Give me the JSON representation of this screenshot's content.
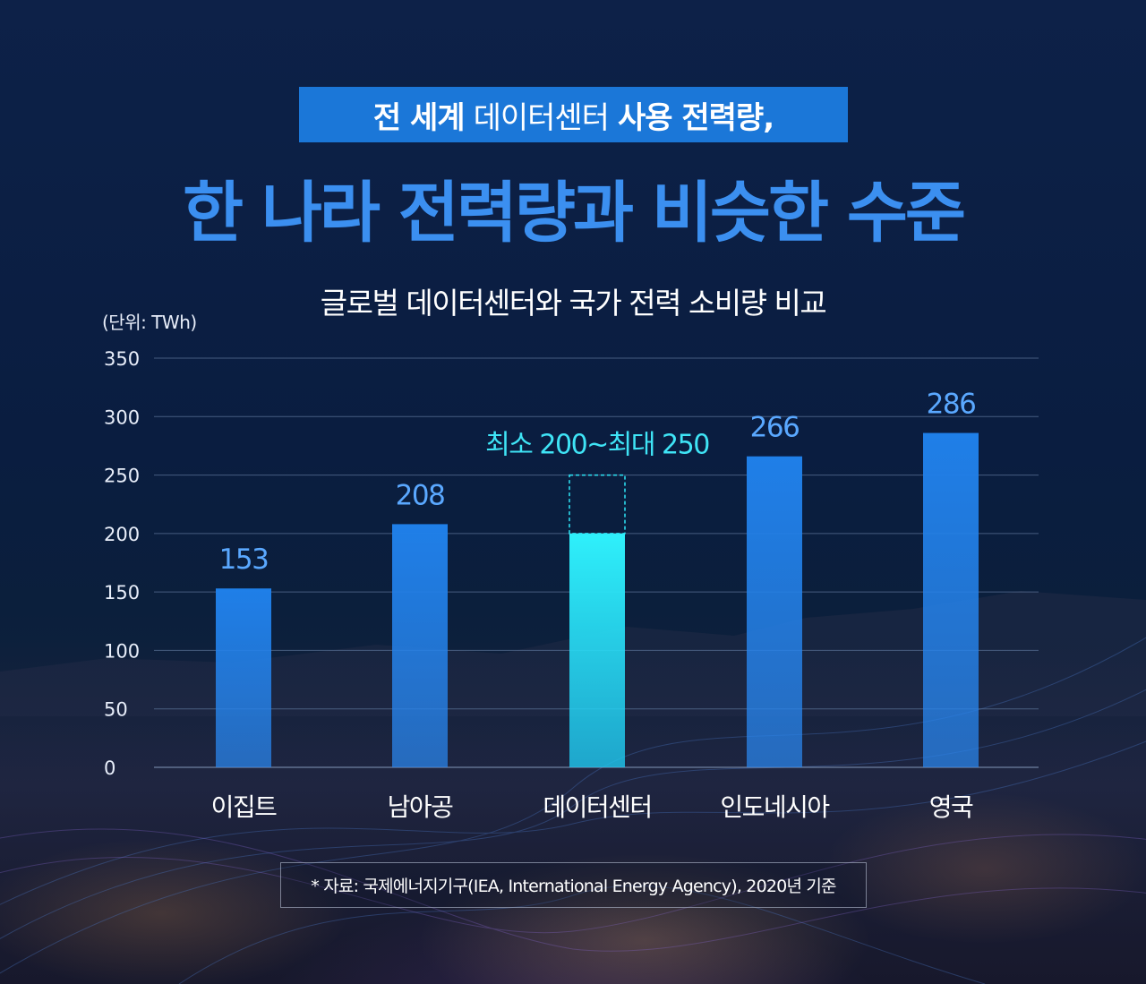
{
  "header": {
    "title_parts": [
      {
        "text": "전 세계",
        "weight": "bold"
      },
      {
        "text": "데이터센터",
        "weight": "normal"
      },
      {
        "text": "사용 전력량,",
        "weight": "bold"
      }
    ],
    "headline": "한 나라 전력량과 비슷한 수준"
  },
  "colors": {
    "title_box": "#1b77d8",
    "headline": "#3b8ff0",
    "bar": "#1f7fe8",
    "highlight_bar": "#22e0f6",
    "value_label": "#5aa8ff",
    "annotation": "#3fe4f6"
  },
  "chart_data": {
    "type": "bar",
    "title": "글로벌 데이터센터와 국가 전력 소비량 비교",
    "unit_label": "(단위: TWh)",
    "xlabel": "",
    "ylabel": "TWh",
    "ylim": [
      0,
      350
    ],
    "yticks": [
      0,
      50,
      100,
      150,
      200,
      250,
      300,
      350
    ],
    "grid": true,
    "categories": [
      "이집트",
      "남아공",
      "데이터센터",
      "인도네시아",
      "영국"
    ],
    "values": [
      153,
      208,
      200,
      266,
      286
    ],
    "value_labels": [
      "153",
      "208",
      "",
      "266",
      "286"
    ],
    "highlight": {
      "category": "데이터센터",
      "min": 200,
      "max": 250,
      "label": "최소 200~최대 250"
    }
  },
  "source_note": "* 자료: 국제에너지기구(IEA, International Energy Agency), 2020년 기준"
}
